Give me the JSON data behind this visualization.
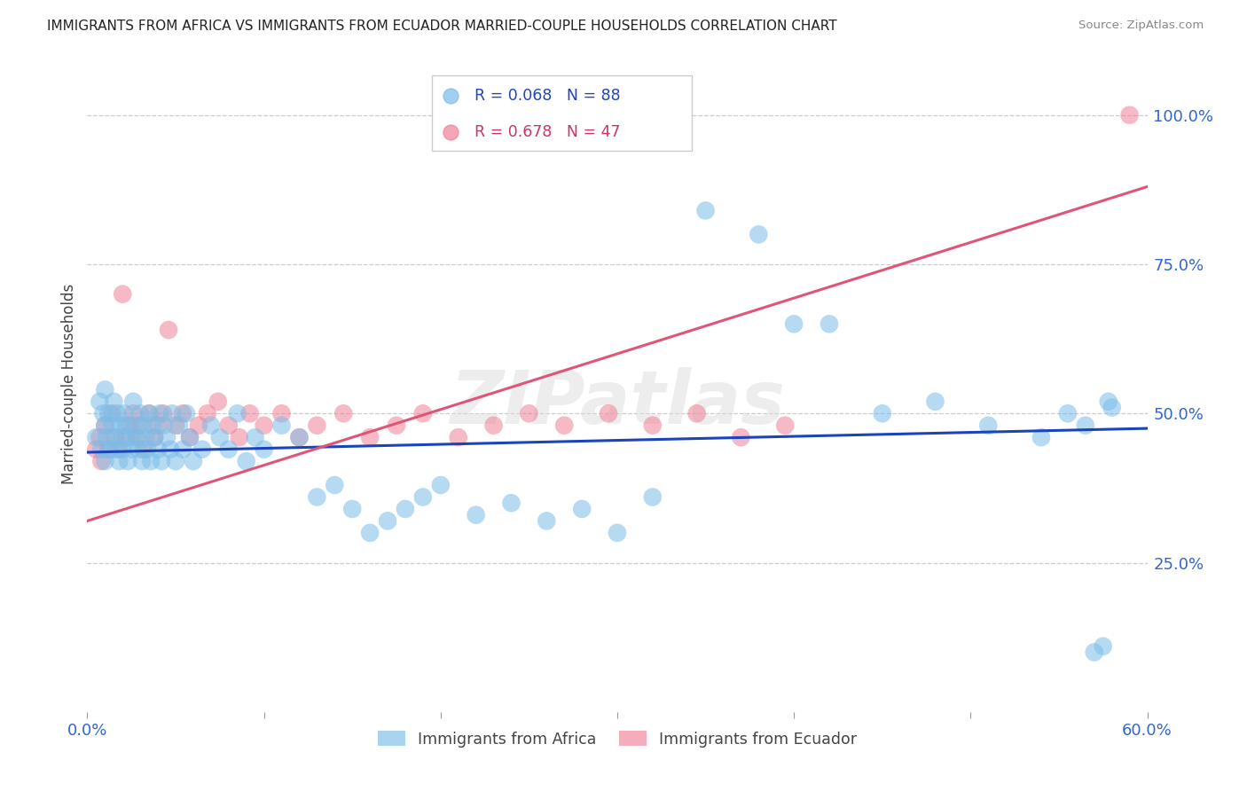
{
  "title": "IMMIGRANTS FROM AFRICA VS IMMIGRANTS FROM ECUADOR MARRIED-COUPLE HOUSEHOLDS CORRELATION CHART",
  "source": "Source: ZipAtlas.com",
  "ylabel": "Married-couple Households",
  "legend1_label": "Immigrants from Africa",
  "legend2_label": "Immigrants from Ecuador",
  "r1": 0.068,
  "n1": 88,
  "r2": 0.678,
  "n2": 47,
  "color_blue": "#7abde8",
  "color_pink": "#f08098",
  "line_color_blue": "#1a44bb",
  "line_color_pink": "#e05575",
  "watermark": "ZIPatlas",
  "xlim": [
    0.0,
    0.6
  ],
  "ylim": [
    0.0,
    1.1
  ],
  "yticks": [
    0.25,
    0.5,
    0.75,
    1.0
  ],
  "ytick_labels": [
    "25.0%",
    "50.0%",
    "75.0%",
    "100.0%"
  ],
  "xtick_labels": [
    "0.0%",
    "60.0%"
  ],
  "africa_x": [
    0.005,
    0.007,
    0.008,
    0.009,
    0.01,
    0.01,
    0.01,
    0.011,
    0.012,
    0.013,
    0.014,
    0.015,
    0.015,
    0.016,
    0.017,
    0.018,
    0.019,
    0.02,
    0.02,
    0.021,
    0.022,
    0.023,
    0.024,
    0.025,
    0.026,
    0.027,
    0.028,
    0.029,
    0.03,
    0.031,
    0.032,
    0.033,
    0.034,
    0.035,
    0.036,
    0.037,
    0.038,
    0.04,
    0.041,
    0.042,
    0.043,
    0.045,
    0.047,
    0.048,
    0.05,
    0.052,
    0.054,
    0.056,
    0.058,
    0.06,
    0.065,
    0.07,
    0.075,
    0.08,
    0.085,
    0.09,
    0.095,
    0.1,
    0.11,
    0.12,
    0.13,
    0.14,
    0.15,
    0.16,
    0.17,
    0.18,
    0.19,
    0.2,
    0.22,
    0.24,
    0.26,
    0.28,
    0.3,
    0.32,
    0.35,
    0.38,
    0.4,
    0.42,
    0.45,
    0.48,
    0.51,
    0.54,
    0.555,
    0.565,
    0.57,
    0.575,
    0.578,
    0.58
  ],
  "africa_y": [
    0.46,
    0.52,
    0.44,
    0.5,
    0.48,
    0.42,
    0.54,
    0.46,
    0.5,
    0.44,
    0.48,
    0.46,
    0.52,
    0.44,
    0.5,
    0.42,
    0.48,
    0.46,
    0.44,
    0.5,
    0.48,
    0.42,
    0.46,
    0.44,
    0.52,
    0.48,
    0.46,
    0.44,
    0.5,
    0.42,
    0.48,
    0.46,
    0.44,
    0.5,
    0.42,
    0.48,
    0.46,
    0.44,
    0.5,
    0.42,
    0.48,
    0.46,
    0.44,
    0.5,
    0.42,
    0.48,
    0.44,
    0.5,
    0.46,
    0.42,
    0.44,
    0.48,
    0.46,
    0.44,
    0.5,
    0.42,
    0.46,
    0.44,
    0.48,
    0.46,
    0.36,
    0.38,
    0.34,
    0.3,
    0.32,
    0.34,
    0.36,
    0.38,
    0.33,
    0.35,
    0.32,
    0.34,
    0.3,
    0.36,
    0.84,
    0.8,
    0.65,
    0.65,
    0.5,
    0.52,
    0.48,
    0.46,
    0.5,
    0.48,
    0.1,
    0.11,
    0.52,
    0.51
  ],
  "ecuador_x": [
    0.005,
    0.007,
    0.008,
    0.01,
    0.012,
    0.014,
    0.016,
    0.018,
    0.02,
    0.022,
    0.024,
    0.026,
    0.028,
    0.03,
    0.032,
    0.035,
    0.038,
    0.04,
    0.043,
    0.046,
    0.05,
    0.054,
    0.058,
    0.063,
    0.068,
    0.074,
    0.08,
    0.086,
    0.092,
    0.1,
    0.11,
    0.12,
    0.13,
    0.145,
    0.16,
    0.175,
    0.19,
    0.21,
    0.23,
    0.25,
    0.27,
    0.295,
    0.32,
    0.345,
    0.37,
    0.395,
    0.59
  ],
  "ecuador_y": [
    0.44,
    0.46,
    0.42,
    0.48,
    0.44,
    0.5,
    0.46,
    0.44,
    0.7,
    0.46,
    0.48,
    0.5,
    0.46,
    0.48,
    0.44,
    0.5,
    0.46,
    0.48,
    0.5,
    0.64,
    0.48,
    0.5,
    0.46,
    0.48,
    0.5,
    0.52,
    0.48,
    0.46,
    0.5,
    0.48,
    0.5,
    0.46,
    0.48,
    0.5,
    0.46,
    0.48,
    0.5,
    0.46,
    0.48,
    0.5,
    0.48,
    0.5,
    0.48,
    0.5,
    0.46,
    0.48,
    1.0
  ],
  "blue_line_x": [
    0.0,
    0.6
  ],
  "blue_line_y": [
    0.435,
    0.475
  ],
  "pink_line_x": [
    0.0,
    0.6
  ],
  "pink_line_y": [
    0.32,
    0.88
  ]
}
